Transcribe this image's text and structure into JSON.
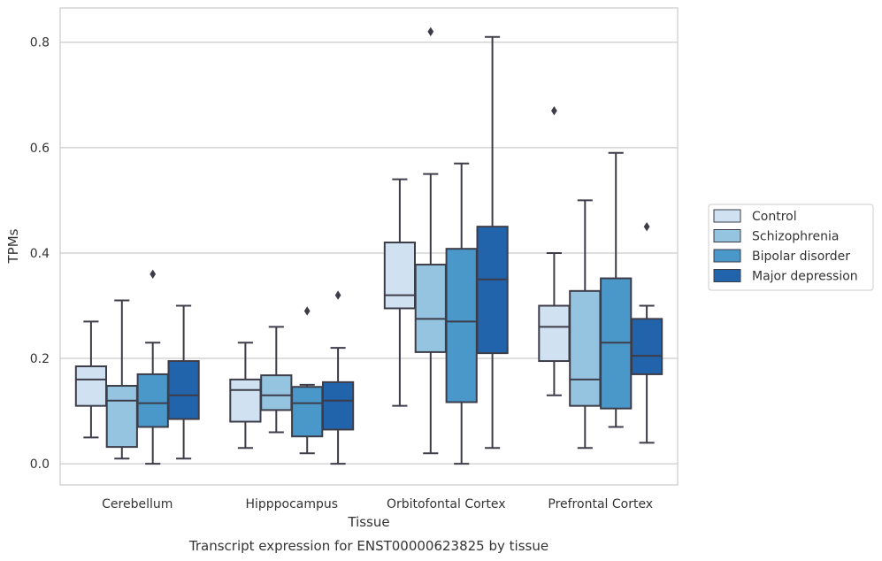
{
  "caption": "Transcript expression for ENST00000623825 by tissue",
  "chart_data": {
    "type": "box",
    "title": "",
    "xlabel": "Tissue",
    "ylabel": "TPMs",
    "ylim": [
      -0.04,
      0.865
    ],
    "yticks": [
      "0.0",
      "0.2",
      "0.4",
      "0.6",
      "0.8"
    ],
    "ytick_values": [
      0.0,
      0.2,
      0.4,
      0.6,
      0.8
    ],
    "grid": "horizontal",
    "legend_position": "right",
    "categories": [
      "Cerebellum",
      "Hipppocampus",
      "Orbitofontal Cortex",
      "Prefrontal Cortex"
    ],
    "series": [
      {
        "name": "Control",
        "color": "#d0e1f2",
        "boxes": [
          {
            "whislo": 0.05,
            "q1": 0.11,
            "med": 0.16,
            "q3": 0.185,
            "whishi": 0.27,
            "fliers": []
          },
          {
            "whislo": 0.03,
            "q1": 0.08,
            "med": 0.14,
            "q3": 0.16,
            "whishi": 0.23,
            "fliers": []
          },
          {
            "whislo": 0.11,
            "q1": 0.295,
            "med": 0.32,
            "q3": 0.42,
            "whishi": 0.54,
            "fliers": []
          },
          {
            "whislo": 0.13,
            "q1": 0.195,
            "med": 0.26,
            "q3": 0.3,
            "whishi": 0.4,
            "fliers": [
              0.67
            ]
          }
        ]
      },
      {
        "name": "Schizophrenia",
        "color": "#94c4df",
        "boxes": [
          {
            "whislo": 0.01,
            "q1": 0.032,
            "med": 0.12,
            "q3": 0.148,
            "whishi": 0.31,
            "fliers": []
          },
          {
            "whislo": 0.06,
            "q1": 0.102,
            "med": 0.13,
            "q3": 0.168,
            "whishi": 0.26,
            "fliers": []
          },
          {
            "whislo": 0.02,
            "q1": 0.212,
            "med": 0.275,
            "q3": 0.378,
            "whishi": 0.55,
            "fliers": [
              0.82
            ]
          },
          {
            "whislo": 0.03,
            "q1": 0.11,
            "med": 0.16,
            "q3": 0.328,
            "whishi": 0.5,
            "fliers": []
          }
        ]
      },
      {
        "name": "Bipolar disorder",
        "color": "#4a98c9",
        "boxes": [
          {
            "whislo": 0.0,
            "q1": 0.07,
            "med": 0.115,
            "q3": 0.17,
            "whishi": 0.23,
            "fliers": [
              0.36
            ]
          },
          {
            "whislo": 0.02,
            "q1": 0.052,
            "med": 0.115,
            "q3": 0.146,
            "whishi": 0.15,
            "fliers": [
              0.29
            ]
          },
          {
            "whislo": 0.0,
            "q1": 0.117,
            "med": 0.27,
            "q3": 0.408,
            "whishi": 0.57,
            "fliers": []
          },
          {
            "whislo": 0.07,
            "q1": 0.105,
            "med": 0.23,
            "q3": 0.352,
            "whishi": 0.59,
            "fliers": []
          }
        ]
      },
      {
        "name": "Major depression",
        "color": "#2164ab",
        "boxes": [
          {
            "whislo": 0.01,
            "q1": 0.085,
            "med": 0.13,
            "q3": 0.195,
            "whishi": 0.3,
            "fliers": []
          },
          {
            "whislo": 0.0,
            "q1": 0.065,
            "med": 0.12,
            "q3": 0.155,
            "whishi": 0.22,
            "fliers": [
              0.32
            ]
          },
          {
            "whislo": 0.03,
            "q1": 0.21,
            "med": 0.35,
            "q3": 0.45,
            "whishi": 0.81,
            "fliers": []
          },
          {
            "whislo": 0.04,
            "q1": 0.17,
            "med": 0.205,
            "q3": 0.275,
            "whishi": 0.3,
            "fliers": [
              0.45
            ]
          }
        ]
      }
    ]
  }
}
